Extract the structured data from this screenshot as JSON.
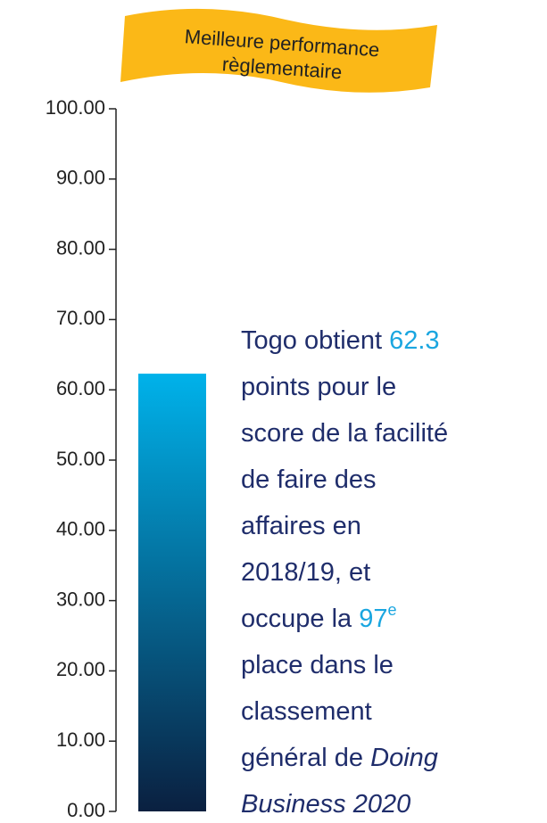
{
  "chart_data": {
    "type": "bar",
    "banner": [
      "Meilleure performance",
      "règlementaire"
    ],
    "categories": [
      null
    ],
    "values": [
      62.3
    ],
    "color_top": "#00b2ea",
    "color_bottom": "#0a2040",
    "ylim": [
      0,
      100
    ],
    "yticks": [
      {
        "value": 0,
        "label": "0.00"
      },
      {
        "value": 10,
        "label": "10.00"
      },
      {
        "value": 20,
        "label": "20.00"
      },
      {
        "value": 30,
        "label": "30.00"
      },
      {
        "value": 40,
        "label": "40.00"
      },
      {
        "value": 50,
        "label": "50.00"
      },
      {
        "value": 60,
        "label": "60.00"
      },
      {
        "value": 70,
        "label": "70.00"
      },
      {
        "value": 80,
        "label": "80.00"
      },
      {
        "value": 90,
        "label": "90.00"
      },
      {
        "value": 100,
        "label": "100.00"
      }
    ],
    "highlight_color": "#1aa6e0",
    "annotation": [
      [
        {
          "text": "Togo obtient "
        },
        {
          "text": "62.3",
          "style": "highlight"
        }
      ],
      [
        {
          "text": "points pour le"
        }
      ],
      [
        {
          "text": "score de la facilité"
        }
      ],
      [
        {
          "text": "de faire des"
        }
      ],
      [
        {
          "text": "affaires en"
        }
      ],
      [
        {
          "text": "2018/19, et"
        }
      ],
      [
        {
          "text": "occupe la "
        },
        {
          "text": "97",
          "style": "highlight"
        },
        {
          "text": "e",
          "style": "sup"
        }
      ],
      [
        {
          "text": "place dans le"
        }
      ],
      [
        {
          "text": "classement"
        }
      ],
      [
        {
          "text": "général de "
        },
        {
          "text": "Doing",
          "style": "italic"
        }
      ],
      [
        {
          "text": "Business 2020",
          "style": "italic"
        }
      ]
    ]
  }
}
